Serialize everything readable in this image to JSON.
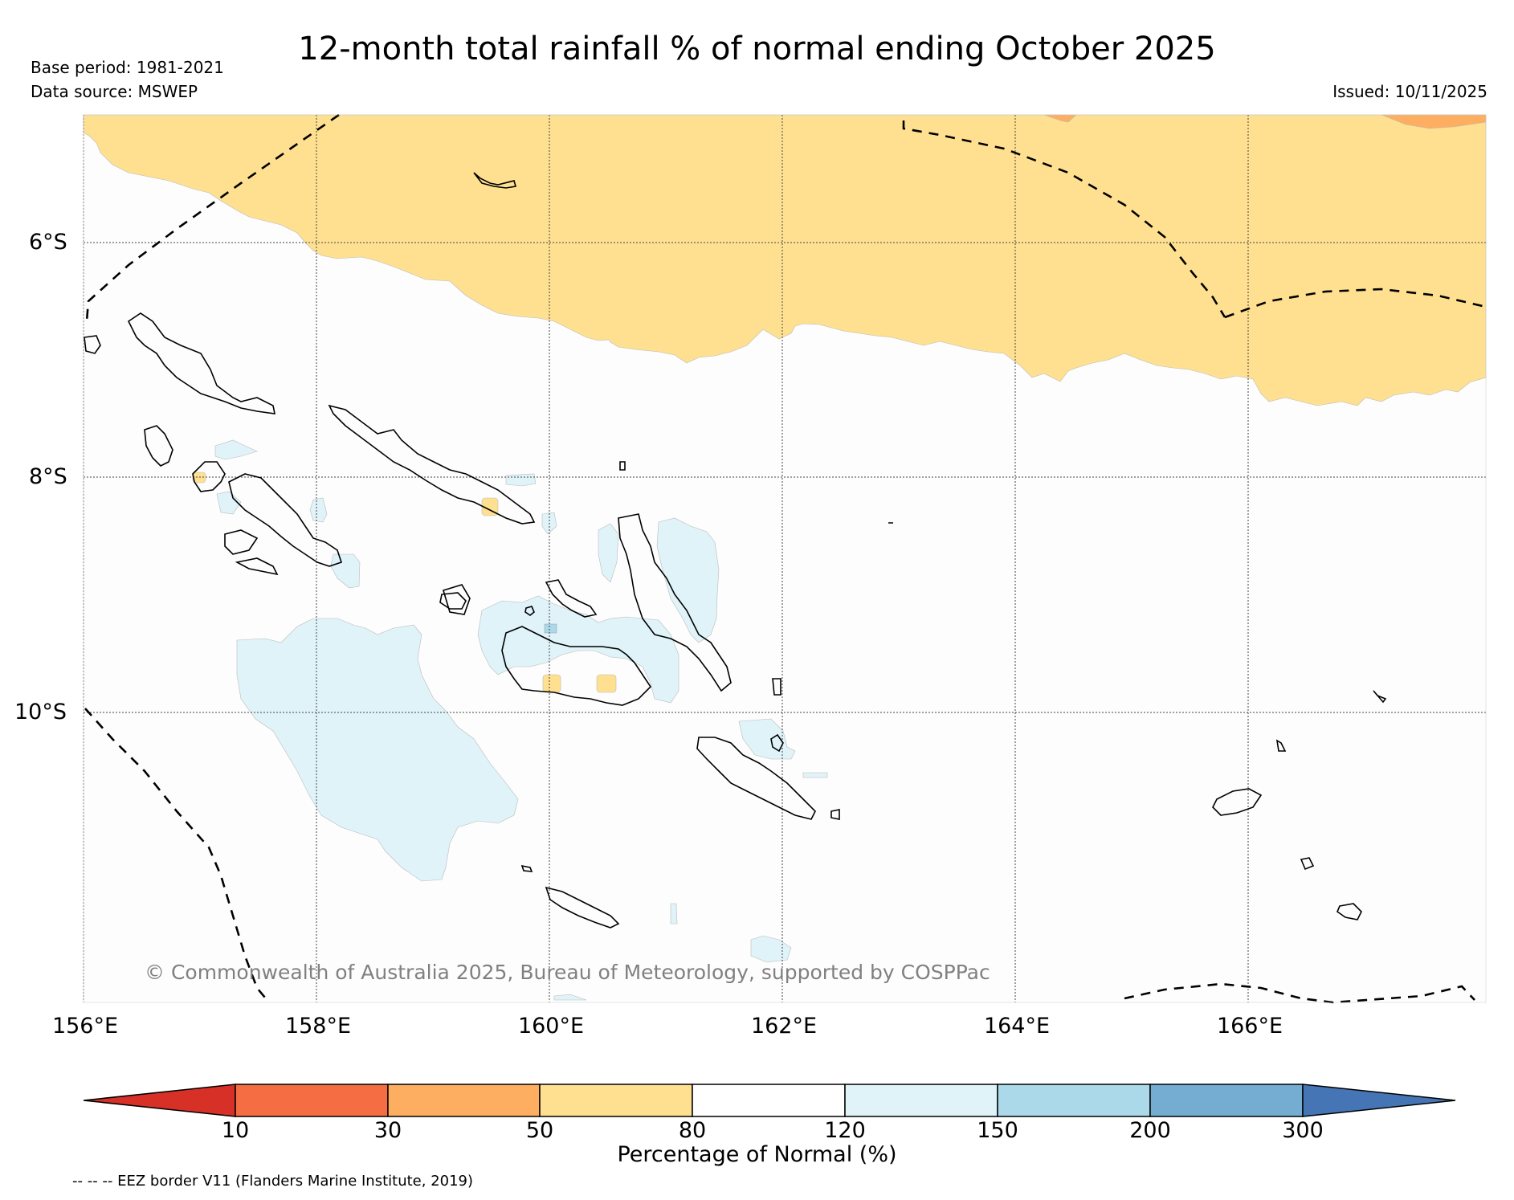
{
  "header": {
    "title": "12-month total rainfall % of normal ending October 2025",
    "base_period": "Base period: 1981-2021",
    "data_source": "Data source: MSWEP",
    "issued": "Issued: 10/11/2025"
  },
  "map": {
    "lat_labels": [
      "6°S",
      "8°S",
      "10°S"
    ],
    "lon_labels": [
      "156°E",
      "158°E",
      "160°E",
      "162°E",
      "164°E",
      "166°E"
    ],
    "copyright": "© Commonwealth of Australia 2025, Bureau of Meteorology, supported by COSPPac"
  },
  "legend": {
    "title": "Percentage of Normal (%)",
    "ticks": [
      "10",
      "30",
      "50",
      "80",
      "120",
      "150",
      "200",
      "300"
    ],
    "colors": [
      "#d73027",
      "#f46d43",
      "#fdae61",
      "#fee090",
      "#ffffff",
      "#e0f3f8",
      "#abd9e9",
      "#74add1",
      "#4575b4"
    ],
    "footnote": "-- -- -- EEZ border V11 (Flanders Marine Institute, 2019)"
  }
}
